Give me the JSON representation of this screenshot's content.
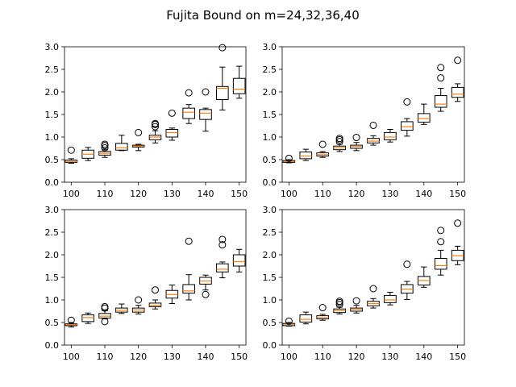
{
  "figure": {
    "suptitle": "Fujita Bound on m=24,32,36,40"
  },
  "chart_data": [
    {
      "type": "box",
      "title": "",
      "xlabel": "",
      "ylabel": "",
      "ylim": [
        0,
        3
      ],
      "xlim": [
        98,
        152
      ],
      "xticks": [
        100,
        110,
        120,
        130,
        140,
        150
      ],
      "yticks": [
        0.0,
        0.5,
        1.0,
        1.5,
        2.0,
        2.5,
        3.0
      ],
      "boxes": [
        {
          "x": 100,
          "whislo": 0.42,
          "q1": 0.44,
          "med": 0.46,
          "q3": 0.49,
          "whishi": 0.52,
          "fliers": [
            0.71
          ]
        },
        {
          "x": 105,
          "whislo": 0.48,
          "q1": 0.53,
          "med": 0.62,
          "q3": 0.71,
          "whishi": 0.77,
          "fliers": []
        },
        {
          "x": 110,
          "whislo": 0.55,
          "q1": 0.6,
          "med": 0.64,
          "q3": 0.68,
          "whishi": 0.72,
          "fliers": [
            0.76,
            0.81,
            0.84
          ]
        },
        {
          "x": 115,
          "whislo": 0.7,
          "q1": 0.71,
          "med": 0.76,
          "q3": 0.86,
          "whishi": 1.04,
          "fliers": []
        },
        {
          "x": 120,
          "whislo": 0.7,
          "q1": 0.78,
          "med": 0.8,
          "q3": 0.82,
          "whishi": 0.84,
          "fliers": [
            1.1
          ]
        },
        {
          "x": 125,
          "whislo": 0.87,
          "q1": 0.94,
          "med": 1.0,
          "q3": 1.04,
          "whishi": 1.14,
          "fliers": [
            1.23,
            1.28,
            1.3
          ]
        },
        {
          "x": 130,
          "whislo": 0.93,
          "q1": 1.0,
          "med": 1.1,
          "q3": 1.17,
          "whishi": 1.2,
          "fliers": [
            1.53
          ]
        },
        {
          "x": 135,
          "whislo": 1.3,
          "q1": 1.41,
          "med": 1.55,
          "q3": 1.64,
          "whishi": 1.72,
          "fliers": [
            1.98
          ]
        },
        {
          "x": 140,
          "whislo": 1.13,
          "q1": 1.39,
          "med": 1.53,
          "q3": 1.61,
          "whishi": 1.64,
          "fliers": [
            2.0
          ]
        },
        {
          "x": 145,
          "whislo": 1.6,
          "q1": 1.83,
          "med": 2.08,
          "q3": 2.12,
          "whishi": 2.55,
          "fliers": [
            2.98
          ]
        },
        {
          "x": 150,
          "whislo": 1.86,
          "q1": 1.96,
          "med": 2.06,
          "q3": 2.3,
          "whishi": 2.57,
          "fliers": []
        }
      ]
    },
    {
      "type": "box",
      "title": "",
      "xlabel": "",
      "ylabel": "",
      "ylim": [
        0,
        3
      ],
      "xlim": [
        98,
        152
      ],
      "xticks": [
        100,
        110,
        120,
        130,
        140,
        150
      ],
      "yticks": [
        0.0,
        0.5,
        1.0,
        1.5,
        2.0,
        2.5,
        3.0
      ],
      "boxes": [
        {
          "x": 100,
          "whislo": 0.43,
          "q1": 0.44,
          "med": 0.46,
          "q3": 0.48,
          "whishi": 0.5,
          "fliers": [
            0.53
          ]
        },
        {
          "x": 105,
          "whislo": 0.48,
          "q1": 0.52,
          "med": 0.58,
          "q3": 0.67,
          "whishi": 0.73,
          "fliers": []
        },
        {
          "x": 110,
          "whislo": 0.55,
          "q1": 0.58,
          "med": 0.61,
          "q3": 0.65,
          "whishi": 0.68,
          "fliers": [
            0.84
          ]
        },
        {
          "x": 115,
          "whislo": 0.68,
          "q1": 0.72,
          "med": 0.76,
          "q3": 0.8,
          "whishi": 0.84,
          "fliers": [
            0.9,
            0.94,
            0.97
          ]
        },
        {
          "x": 120,
          "whislo": 0.7,
          "q1": 0.75,
          "med": 0.79,
          "q3": 0.82,
          "whishi": 0.88,
          "fliers": [
            0.99
          ]
        },
        {
          "x": 125,
          "whislo": 0.82,
          "q1": 0.87,
          "med": 0.91,
          "q3": 0.97,
          "whishi": 1.03,
          "fliers": [
            1.26
          ]
        },
        {
          "x": 130,
          "whislo": 0.89,
          "q1": 0.94,
          "med": 1.0,
          "q3": 1.1,
          "whishi": 1.17,
          "fliers": []
        },
        {
          "x": 135,
          "whislo": 1.02,
          "q1": 1.15,
          "med": 1.23,
          "q3": 1.34,
          "whishi": 1.41,
          "fliers": [
            1.78
          ]
        },
        {
          "x": 140,
          "whislo": 1.28,
          "q1": 1.33,
          "med": 1.41,
          "q3": 1.52,
          "whishi": 1.73,
          "fliers": []
        },
        {
          "x": 145,
          "whislo": 1.57,
          "q1": 1.66,
          "med": 1.73,
          "q3": 1.92,
          "whishi": 2.08,
          "fliers": [
            2.31,
            2.54
          ]
        },
        {
          "x": 150,
          "whislo": 1.79,
          "q1": 1.88,
          "med": 1.95,
          "q3": 2.1,
          "whishi": 2.18,
          "fliers": [
            2.7
          ]
        }
      ]
    },
    {
      "type": "box",
      "title": "",
      "xlabel": "",
      "ylabel": "",
      "ylim": [
        0,
        3
      ],
      "xlim": [
        98,
        152
      ],
      "xticks": [
        100,
        110,
        120,
        130,
        140,
        150
      ],
      "yticks": [
        0.0,
        0.5,
        1.0,
        1.5,
        2.0,
        2.5,
        3.0
      ],
      "boxes": [
        {
          "x": 100,
          "whislo": 0.4,
          "q1": 0.43,
          "med": 0.45,
          "q3": 0.47,
          "whishi": 0.5,
          "fliers": [
            0.55
          ]
        },
        {
          "x": 105,
          "whislo": 0.48,
          "q1": 0.52,
          "med": 0.61,
          "q3": 0.67,
          "whishi": 0.71,
          "fliers": []
        },
        {
          "x": 110,
          "whislo": 0.58,
          "q1": 0.6,
          "med": 0.64,
          "q3": 0.7,
          "whishi": 0.76,
          "fliers": [
            0.52,
            0.82,
            0.85
          ]
        },
        {
          "x": 115,
          "whislo": 0.7,
          "q1": 0.73,
          "med": 0.77,
          "q3": 0.82,
          "whishi": 0.91,
          "fliers": []
        },
        {
          "x": 120,
          "whislo": 0.69,
          "q1": 0.73,
          "med": 0.78,
          "q3": 0.82,
          "whishi": 0.88,
          "fliers": [
            1.0
          ]
        },
        {
          "x": 125,
          "whislo": 0.8,
          "q1": 0.85,
          "med": 0.88,
          "q3": 0.93,
          "whishi": 1.0,
          "fliers": [
            1.22
          ]
        },
        {
          "x": 130,
          "whislo": 0.92,
          "q1": 1.04,
          "med": 1.12,
          "q3": 1.21,
          "whishi": 1.33,
          "fliers": []
        },
        {
          "x": 135,
          "whislo": 1.0,
          "q1": 1.15,
          "med": 1.2,
          "q3": 1.34,
          "whishi": 1.56,
          "fliers": [
            2.3
          ]
        },
        {
          "x": 140,
          "whislo": 1.22,
          "q1": 1.35,
          "med": 1.42,
          "q3": 1.5,
          "whishi": 1.55,
          "fliers": [
            1.12
          ]
        },
        {
          "x": 145,
          "whislo": 1.49,
          "q1": 1.62,
          "med": 1.68,
          "q3": 1.8,
          "whishi": 1.84,
          "fliers": [
            2.22,
            2.34
          ]
        },
        {
          "x": 150,
          "whislo": 1.62,
          "q1": 1.75,
          "med": 1.85,
          "q3": 2.0,
          "whishi": 2.12,
          "fliers": []
        }
      ]
    },
    {
      "type": "box",
      "title": "",
      "xlabel": "",
      "ylabel": "",
      "ylim": [
        0,
        3
      ],
      "xlim": [
        98,
        152
      ],
      "xticks": [
        100,
        110,
        120,
        130,
        140,
        150
      ],
      "yticks": [
        0.0,
        0.5,
        1.0,
        1.5,
        2.0,
        2.5,
        3.0
      ],
      "boxes": [
        {
          "x": 100,
          "whislo": 0.42,
          "q1": 0.43,
          "med": 0.46,
          "q3": 0.48,
          "whishi": 0.5,
          "fliers": [
            0.53
          ]
        },
        {
          "x": 105,
          "whislo": 0.47,
          "q1": 0.51,
          "med": 0.57,
          "q3": 0.67,
          "whishi": 0.73,
          "fliers": []
        },
        {
          "x": 110,
          "whislo": 0.55,
          "q1": 0.58,
          "med": 0.61,
          "q3": 0.65,
          "whishi": 0.68,
          "fliers": [
            0.83
          ]
        },
        {
          "x": 115,
          "whislo": 0.69,
          "q1": 0.72,
          "med": 0.76,
          "q3": 0.8,
          "whishi": 0.84,
          "fliers": [
            0.9,
            0.94,
            0.97
          ]
        },
        {
          "x": 120,
          "whislo": 0.71,
          "q1": 0.75,
          "med": 0.79,
          "q3": 0.82,
          "whishi": 0.88,
          "fliers": [
            0.98
          ]
        },
        {
          "x": 125,
          "whislo": 0.82,
          "q1": 0.87,
          "med": 0.92,
          "q3": 0.97,
          "whishi": 1.03,
          "fliers": [
            1.25
          ]
        },
        {
          "x": 130,
          "whislo": 0.89,
          "q1": 0.94,
          "med": 1.0,
          "q3": 1.1,
          "whishi": 1.17,
          "fliers": []
        },
        {
          "x": 135,
          "whislo": 1.01,
          "q1": 1.15,
          "med": 1.24,
          "q3": 1.34,
          "whishi": 1.41,
          "fliers": [
            1.79
          ]
        },
        {
          "x": 140,
          "whislo": 1.28,
          "q1": 1.33,
          "med": 1.43,
          "q3": 1.52,
          "whishi": 1.73,
          "fliers": []
        },
        {
          "x": 145,
          "whislo": 1.55,
          "q1": 1.68,
          "med": 1.76,
          "q3": 1.92,
          "whishi": 2.1,
          "fliers": [
            2.29,
            2.54
          ]
        },
        {
          "x": 150,
          "whislo": 1.78,
          "q1": 1.87,
          "med": 1.98,
          "q3": 2.1,
          "whishi": 2.19,
          "fliers": [
            2.7
          ]
        }
      ]
    }
  ],
  "colors": {
    "median": "#ff7f0e",
    "box": "#000000",
    "flier": "#000000"
  }
}
